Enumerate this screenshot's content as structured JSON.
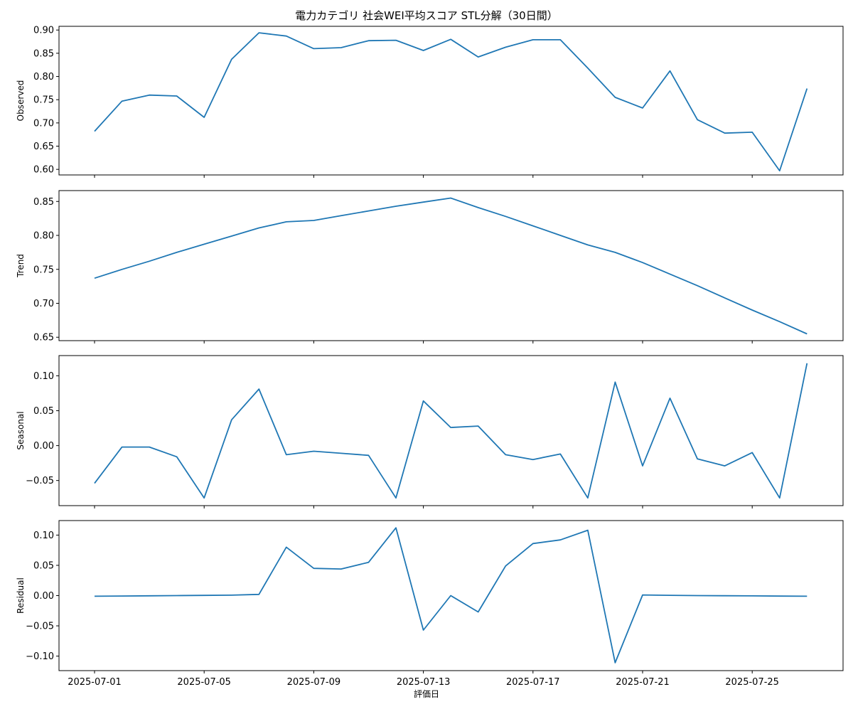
{
  "chart_data": {
    "type": "line",
    "title": "電力カテゴリ 社会WEI平均スコア STL分解（30日間）",
    "xlabel": "評価日",
    "x": [
      "2025-07-01",
      "2025-07-02",
      "2025-07-03",
      "2025-07-04",
      "2025-07-05",
      "2025-07-06",
      "2025-07-07",
      "2025-07-08",
      "2025-07-09",
      "2025-07-10",
      "2025-07-11",
      "2025-07-12",
      "2025-07-13",
      "2025-07-14",
      "2025-07-15",
      "2025-07-16",
      "2025-07-17",
      "2025-07-18",
      "2025-07-19",
      "2025-07-20",
      "2025-07-21",
      "2025-07-22",
      "2025-07-23",
      "2025-07-24",
      "2025-07-25",
      "2025-07-26",
      "2025-07-27"
    ],
    "xticks": [
      "2025-07-01",
      "2025-07-05",
      "2025-07-09",
      "2025-07-13",
      "2025-07-17",
      "2025-07-21",
      "2025-07-25"
    ],
    "line_color": "#1f77b4",
    "grid": false,
    "panels": [
      {
        "name": "Observed",
        "ylabel": "Observed",
        "ylim": [
          0.588,
          0.908
        ],
        "yticks": [
          "0.60",
          "0.65",
          "0.70",
          "0.75",
          "0.80",
          "0.85",
          "0.90"
        ],
        "values": [
          0.682,
          0.747,
          0.76,
          0.758,
          0.712,
          0.837,
          0.894,
          0.887,
          0.86,
          0.862,
          0.877,
          0.878,
          0.856,
          0.88,
          0.842,
          0.863,
          0.879,
          0.879,
          0.818,
          0.755,
          0.732,
          0.812,
          0.707,
          0.678,
          0.68,
          0.597,
          0.774
        ]
      },
      {
        "name": "Trend",
        "ylabel": "Trend",
        "ylim": [
          0.645,
          0.866
        ],
        "yticks": [
          "0.65",
          "0.70",
          "0.75",
          "0.80",
          "0.85"
        ],
        "values": [
          0.737,
          0.75,
          0.762,
          0.775,
          0.787,
          0.799,
          0.811,
          0.82,
          0.822,
          0.829,
          0.836,
          0.843,
          0.849,
          0.855,
          0.841,
          0.828,
          0.814,
          0.8,
          0.786,
          0.775,
          0.76,
          0.743,
          0.726,
          0.708,
          0.69,
          0.673,
          0.655
        ]
      },
      {
        "name": "Seasonal",
        "ylabel": "Seasonal",
        "ylim": [
          -0.086,
          0.129
        ],
        "yticks": [
          "−0.05",
          "0.00",
          "0.05",
          "0.10"
        ],
        "values": [
          -0.054,
          -0.002,
          -0.002,
          -0.016,
          -0.075,
          0.037,
          0.081,
          -0.013,
          -0.008,
          -0.011,
          -0.014,
          -0.075,
          0.064,
          0.026,
          0.028,
          -0.013,
          -0.02,
          -0.012,
          -0.075,
          0.091,
          -0.029,
          0.068,
          -0.019,
          -0.029,
          -0.01,
          -0.075,
          0.118
        ]
      },
      {
        "name": "Residual",
        "ylabel": "Residual",
        "ylim": [
          -0.124,
          0.124
        ],
        "yticks": [
          "−0.10",
          "−0.05",
          "0.00",
          "0.05",
          "0.10"
        ],
        "values": [
          -0.001,
          -0.0007,
          -0.0003,
          0.0,
          0.0003,
          0.0007,
          0.002,
          0.08,
          0.045,
          0.044,
          0.055,
          0.112,
          -0.057,
          0.0,
          -0.027,
          0.049,
          0.086,
          0.092,
          0.108,
          -0.111,
          0.001,
          0.0005,
          0.0,
          -0.0002,
          -0.0005,
          -0.0008,
          -0.001
        ]
      }
    ]
  }
}
